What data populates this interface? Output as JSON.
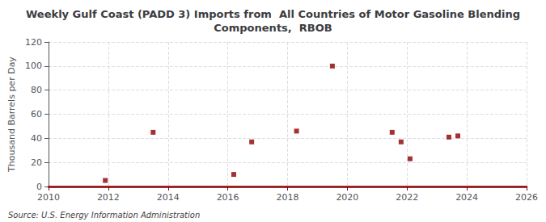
{
  "chart_data": {
    "type": "scatter",
    "title": "Weekly Gulf Coast (PADD 3) Imports from  All Countries of Motor Gasoline Blending\nComponents,  RBOB",
    "ylabel": "Thousand Barrels per Day",
    "annotations": [
      "Source: U.S. Energy Information Administration"
    ],
    "x": [
      2011.9,
      2013.5,
      2016.2,
      2016.8,
      2018.3,
      2019.5,
      2021.5,
      2021.8,
      2022.1,
      2023.4,
      2023.7
    ],
    "values": [
      5,
      45,
      10,
      37,
      46,
      100,
      45,
      37,
      23,
      41,
      42
    ],
    "color": "#8b0000",
    "marker": "square",
    "xlim": [
      2010,
      2026
    ],
    "xticks": [
      2010,
      2012,
      2014,
      2016,
      2018,
      2020,
      2022,
      2024,
      2026
    ],
    "ylim": [
      0,
      120
    ],
    "yticks": [
      0,
      20,
      40,
      60,
      80,
      100,
      120
    ],
    "grid": true
  }
}
